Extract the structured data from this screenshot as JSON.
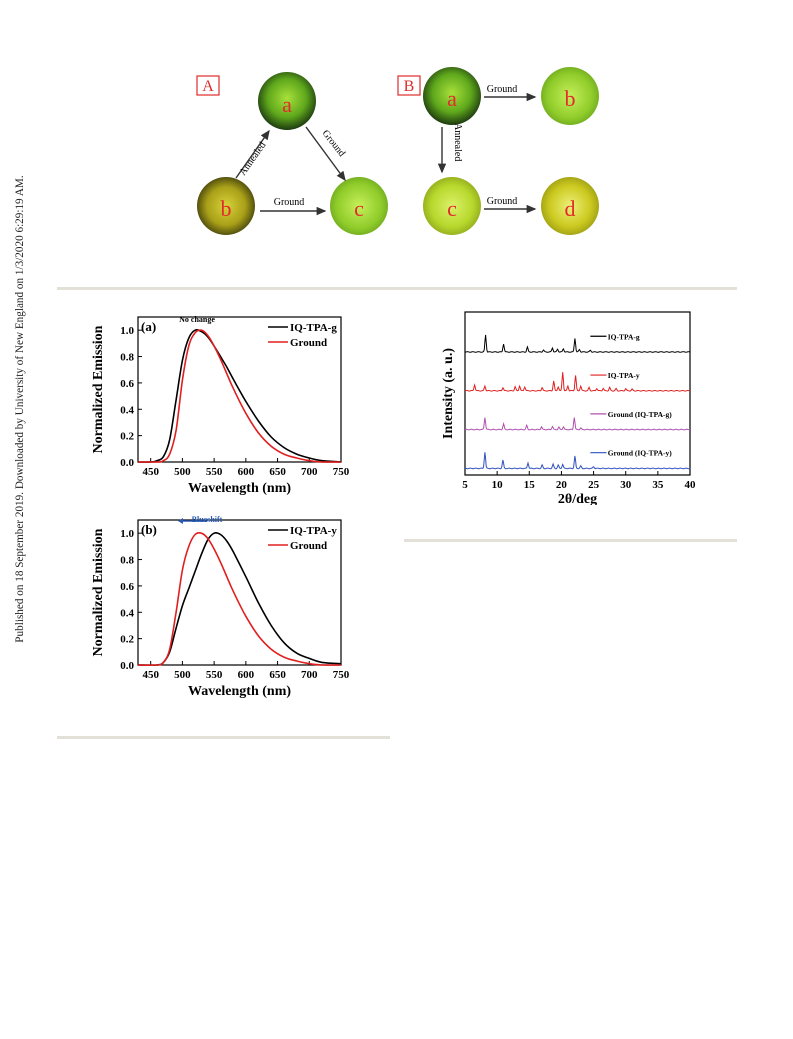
{
  "side_note": "Published on 18 September 2019. Downloaded by University of New England on 1/3/2020 6:29:19 AM.",
  "scheme": {
    "panel_a_label": "A",
    "panel_b_label": "B",
    "a_nodes": [
      "a",
      "b",
      "c"
    ],
    "a_edges": [
      "Annealed",
      "Ground",
      "Ground"
    ],
    "b_nodes": [
      "a",
      "b",
      "c",
      "d"
    ],
    "b_edges": [
      "Ground",
      "Annealed",
      "Ground"
    ],
    "colors": {
      "label_red": "#e02c2c",
      "green_crystal": "#8ccd2a",
      "yellow_crystal": "#c9c619"
    }
  },
  "chart_data": [
    {
      "type": "line",
      "panel_label": "(a)",
      "annotation": "No change",
      "xlabel": "Wavelength (nm)",
      "ylabel": "Normalized Emission",
      "xlim": [
        430,
        750
      ],
      "ylim": [
        0,
        1.1
      ],
      "xticks": [
        450,
        500,
        550,
        600,
        650,
        700,
        750
      ],
      "yticks": [
        0.0,
        0.2,
        0.4,
        0.6,
        0.8,
        1.0
      ],
      "legend_position": "top-right",
      "series": [
        {
          "name": "IQ-TPA-g",
          "color": "#000000",
          "x": [
            430,
            450,
            460,
            470,
            480,
            490,
            500,
            510,
            520,
            530,
            540,
            550,
            560,
            570,
            580,
            600,
            620,
            640,
            660,
            680,
            700,
            720,
            750
          ],
          "y": [
            0.0,
            0.0,
            0.01,
            0.04,
            0.17,
            0.47,
            0.77,
            0.94,
            1.0,
            0.99,
            0.95,
            0.88,
            0.8,
            0.72,
            0.63,
            0.46,
            0.31,
            0.19,
            0.11,
            0.06,
            0.03,
            0.01,
            0.0
          ]
        },
        {
          "name": "Ground",
          "color": "#e02020",
          "x": [
            430,
            460,
            470,
            480,
            490,
            500,
            510,
            520,
            530,
            540,
            550,
            560,
            570,
            580,
            600,
            620,
            640,
            660,
            680,
            700,
            720,
            750
          ],
          "y": [
            0.0,
            0.0,
            0.01,
            0.06,
            0.24,
            0.62,
            0.88,
            0.98,
            1.0,
            0.96,
            0.88,
            0.78,
            0.67,
            0.56,
            0.37,
            0.22,
            0.12,
            0.06,
            0.03,
            0.01,
            0.0,
            0.0
          ]
        }
      ]
    },
    {
      "type": "line",
      "panel_label": "(b)",
      "annotation": "Blueshift",
      "xlabel": "Wavelength (nm)",
      "ylabel": "Normalized Emission",
      "xlim": [
        430,
        750
      ],
      "ylim": [
        0,
        1.1
      ],
      "xticks": [
        450,
        500,
        550,
        600,
        650,
        700,
        750
      ],
      "yticks": [
        0.0,
        0.2,
        0.4,
        0.6,
        0.8,
        1.0
      ],
      "legend_position": "top-right",
      "series": [
        {
          "name": "IQ-TPA-y",
          "color": "#000000",
          "x": [
            430,
            460,
            470,
            480,
            490,
            500,
            510,
            520,
            530,
            540,
            550,
            560,
            570,
            580,
            600,
            620,
            640,
            660,
            680,
            700,
            720,
            750
          ],
          "y": [
            0.0,
            0.0,
            0.02,
            0.1,
            0.28,
            0.45,
            0.58,
            0.71,
            0.84,
            0.95,
            1.0,
            0.99,
            0.94,
            0.86,
            0.67,
            0.47,
            0.3,
            0.17,
            0.09,
            0.05,
            0.02,
            0.01
          ]
        },
        {
          "name": "Ground",
          "color": "#e02020",
          "x": [
            430,
            460,
            470,
            480,
            490,
            500,
            510,
            520,
            530,
            540,
            550,
            560,
            570,
            580,
            600,
            620,
            640,
            660,
            680,
            700,
            720,
            750
          ],
          "y": [
            0.0,
            0.0,
            0.02,
            0.12,
            0.4,
            0.72,
            0.9,
            0.99,
            1.0,
            0.96,
            0.88,
            0.78,
            0.67,
            0.56,
            0.37,
            0.22,
            0.12,
            0.06,
            0.03,
            0.01,
            0.0,
            0.0
          ]
        }
      ]
    },
    {
      "type": "line",
      "xlabel": "2θ/deg",
      "ylabel": "Intensity (a. u.)",
      "xlim": [
        5,
        40
      ],
      "xticks": [
        5,
        10,
        15,
        20,
        25,
        30,
        35,
        40
      ],
      "legend_position": "inline",
      "series": [
        {
          "name": "IQ-TPA-g",
          "color": "#000000",
          "baseline": 3,
          "peaks": [
            [
              8.2,
              0.42
            ],
            [
              11.0,
              0.2
            ],
            [
              14.7,
              0.12
            ],
            [
              17.2,
              0.05
            ],
            [
              18.6,
              0.1
            ],
            [
              19.4,
              0.07
            ],
            [
              20.3,
              0.08
            ],
            [
              22.1,
              0.34
            ],
            [
              22.8,
              0.06
            ],
            [
              24.5,
              0.04
            ]
          ]
        },
        {
          "name": "IQ-TPA-y",
          "color": "#e02020",
          "baseline": 2,
          "peaks": [
            [
              6.5,
              0.15
            ],
            [
              8.1,
              0.12
            ],
            [
              10.9,
              0.08
            ],
            [
              12.8,
              0.1
            ],
            [
              13.5,
              0.12
            ],
            [
              14.3,
              0.1
            ],
            [
              17.0,
              0.08
            ],
            [
              18.8,
              0.24
            ],
            [
              19.5,
              0.1
            ],
            [
              20.2,
              0.46
            ],
            [
              21.0,
              0.12
            ],
            [
              22.2,
              0.38
            ],
            [
              23.0,
              0.12
            ],
            [
              24.3,
              0.08
            ],
            [
              25.5,
              0.06
            ],
            [
              26.5,
              0.06
            ],
            [
              27.5,
              0.08
            ],
            [
              28.5,
              0.05
            ],
            [
              30.0,
              0.05
            ],
            [
              31.0,
              0.04
            ]
          ]
        },
        {
          "name": "Ground (IQ-TPA-g)",
          "color": "#b050b0",
          "baseline": 1,
          "peaks": [
            [
              8.1,
              0.3
            ],
            [
              11.0,
              0.14
            ],
            [
              14.6,
              0.1
            ],
            [
              16.9,
              0.07
            ],
            [
              18.6,
              0.08
            ],
            [
              19.6,
              0.06
            ],
            [
              20.3,
              0.07
            ],
            [
              22.0,
              0.3
            ],
            [
              23.0,
              0.04
            ]
          ]
        },
        {
          "name": "Ground (IQ-TPA-y)",
          "color": "#3050c0",
          "baseline": 0,
          "peaks": [
            [
              8.1,
              0.4
            ],
            [
              10.9,
              0.2
            ],
            [
              14.8,
              0.14
            ],
            [
              17.0,
              0.08
            ],
            [
              18.7,
              0.1
            ],
            [
              19.5,
              0.08
            ],
            [
              20.2,
              0.1
            ],
            [
              22.1,
              0.3
            ],
            [
              23.0,
              0.06
            ],
            [
              25.0,
              0.04
            ]
          ]
        }
      ]
    }
  ]
}
